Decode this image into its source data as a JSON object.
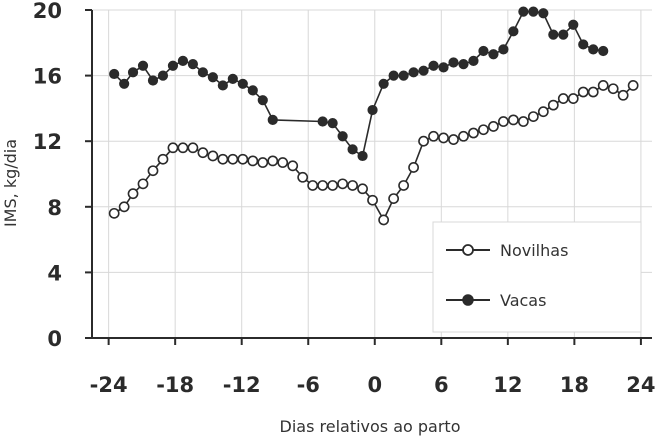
{
  "chart_data": {
    "type": "line",
    "title": "",
    "xlabel": "Dias relativos ao parto",
    "ylabel": "IMS, kg/dia",
    "xlim": [
      -25.5,
      25
    ],
    "ylim": [
      0,
      20
    ],
    "xticks": [
      -24,
      -18,
      -12,
      -6,
      0,
      6,
      12,
      18,
      24
    ],
    "yticks": [
      0,
      4,
      8,
      12,
      16,
      20
    ],
    "grid": "horizontal and vertical at ticks",
    "legend_position": "bottom-right",
    "colors": {
      "line": "#2b2b2b",
      "grid": "#d8d8d8",
      "text": "#2b2b2b"
    },
    "series": [
      {
        "name": "Novilhas",
        "marker": "open-circle",
        "points": [
          [
            -23.5,
            7.6
          ],
          [
            -22.6,
            8.0
          ],
          [
            -21.8,
            8.8
          ],
          [
            -20.9,
            9.4
          ],
          [
            -20.0,
            10.2
          ],
          [
            -19.1,
            10.9
          ],
          [
            -18.2,
            11.6
          ],
          [
            -17.3,
            11.6
          ],
          [
            -16.4,
            11.6
          ],
          [
            -15.5,
            11.3
          ],
          [
            -14.6,
            11.1
          ],
          [
            -13.7,
            10.9
          ],
          [
            -12.8,
            10.9
          ],
          [
            -11.9,
            10.9
          ],
          [
            -11.0,
            10.8
          ],
          [
            -10.1,
            10.7
          ],
          [
            -9.2,
            10.8
          ],
          [
            -8.3,
            10.7
          ],
          [
            -7.4,
            10.5
          ],
          [
            -6.5,
            9.8
          ],
          [
            -5.6,
            9.3
          ],
          [
            -4.7,
            9.3
          ],
          [
            -3.8,
            9.3
          ],
          [
            -2.9,
            9.4
          ],
          [
            -2.0,
            9.3
          ],
          [
            -1.1,
            9.1
          ],
          [
            -0.2,
            8.4
          ],
          [
            0.8,
            7.2
          ],
          [
            1.7,
            8.5
          ],
          [
            2.6,
            9.3
          ],
          [
            3.5,
            10.4
          ],
          [
            4.4,
            12.0
          ],
          [
            5.3,
            12.3
          ],
          [
            6.2,
            12.2
          ],
          [
            7.1,
            12.1
          ],
          [
            8.0,
            12.3
          ],
          [
            8.9,
            12.5
          ],
          [
            9.8,
            12.7
          ],
          [
            10.7,
            12.9
          ],
          [
            11.6,
            13.2
          ],
          [
            12.5,
            13.3
          ],
          [
            13.4,
            13.2
          ],
          [
            14.3,
            13.5
          ],
          [
            15.2,
            13.8
          ],
          [
            16.1,
            14.2
          ],
          [
            17.0,
            14.6
          ],
          [
            17.9,
            14.6
          ],
          [
            18.8,
            15.0
          ],
          [
            19.7,
            15.0
          ],
          [
            20.6,
            15.4
          ],
          [
            21.5,
            15.2
          ],
          [
            22.4,
            14.8
          ],
          [
            23.3,
            15.4
          ]
        ]
      },
      {
        "name": "Vacas",
        "marker": "filled-circle",
        "points": [
          [
            -23.5,
            16.1
          ],
          [
            -22.6,
            15.5
          ],
          [
            -21.8,
            16.2
          ],
          [
            -20.9,
            16.6
          ],
          [
            -20.0,
            15.7
          ],
          [
            -19.1,
            16.0
          ],
          [
            -18.2,
            16.6
          ],
          [
            -17.3,
            16.9
          ],
          [
            -16.4,
            16.7
          ],
          [
            -15.5,
            16.2
          ],
          [
            -14.6,
            15.9
          ],
          [
            -13.7,
            15.4
          ],
          [
            -12.8,
            15.8
          ],
          [
            -11.9,
            15.5
          ],
          [
            -11.0,
            15.1
          ],
          [
            -10.1,
            14.5
          ],
          [
            -9.2,
            13.3
          ],
          [
            -4.7,
            13.2
          ],
          [
            -3.8,
            13.1
          ],
          [
            -2.9,
            12.3
          ],
          [
            -2.0,
            11.5
          ],
          [
            -1.1,
            11.1
          ],
          [
            -0.2,
            13.9
          ],
          [
            0.8,
            15.5
          ],
          [
            1.7,
            16.0
          ],
          [
            2.6,
            16.0
          ],
          [
            3.5,
            16.2
          ],
          [
            4.4,
            16.3
          ],
          [
            5.3,
            16.6
          ],
          [
            6.2,
            16.5
          ],
          [
            7.1,
            16.8
          ],
          [
            8.0,
            16.7
          ],
          [
            8.9,
            16.9
          ],
          [
            9.8,
            17.5
          ],
          [
            10.7,
            17.3
          ],
          [
            11.6,
            17.6
          ],
          [
            12.5,
            18.7
          ],
          [
            13.4,
            19.9
          ],
          [
            14.3,
            19.9
          ],
          [
            15.2,
            19.8
          ],
          [
            16.1,
            18.5
          ],
          [
            17.0,
            18.5
          ],
          [
            17.9,
            19.1
          ],
          [
            18.8,
            17.9
          ],
          [
            19.7,
            17.6
          ],
          [
            20.6,
            17.5
          ]
        ]
      }
    ]
  }
}
